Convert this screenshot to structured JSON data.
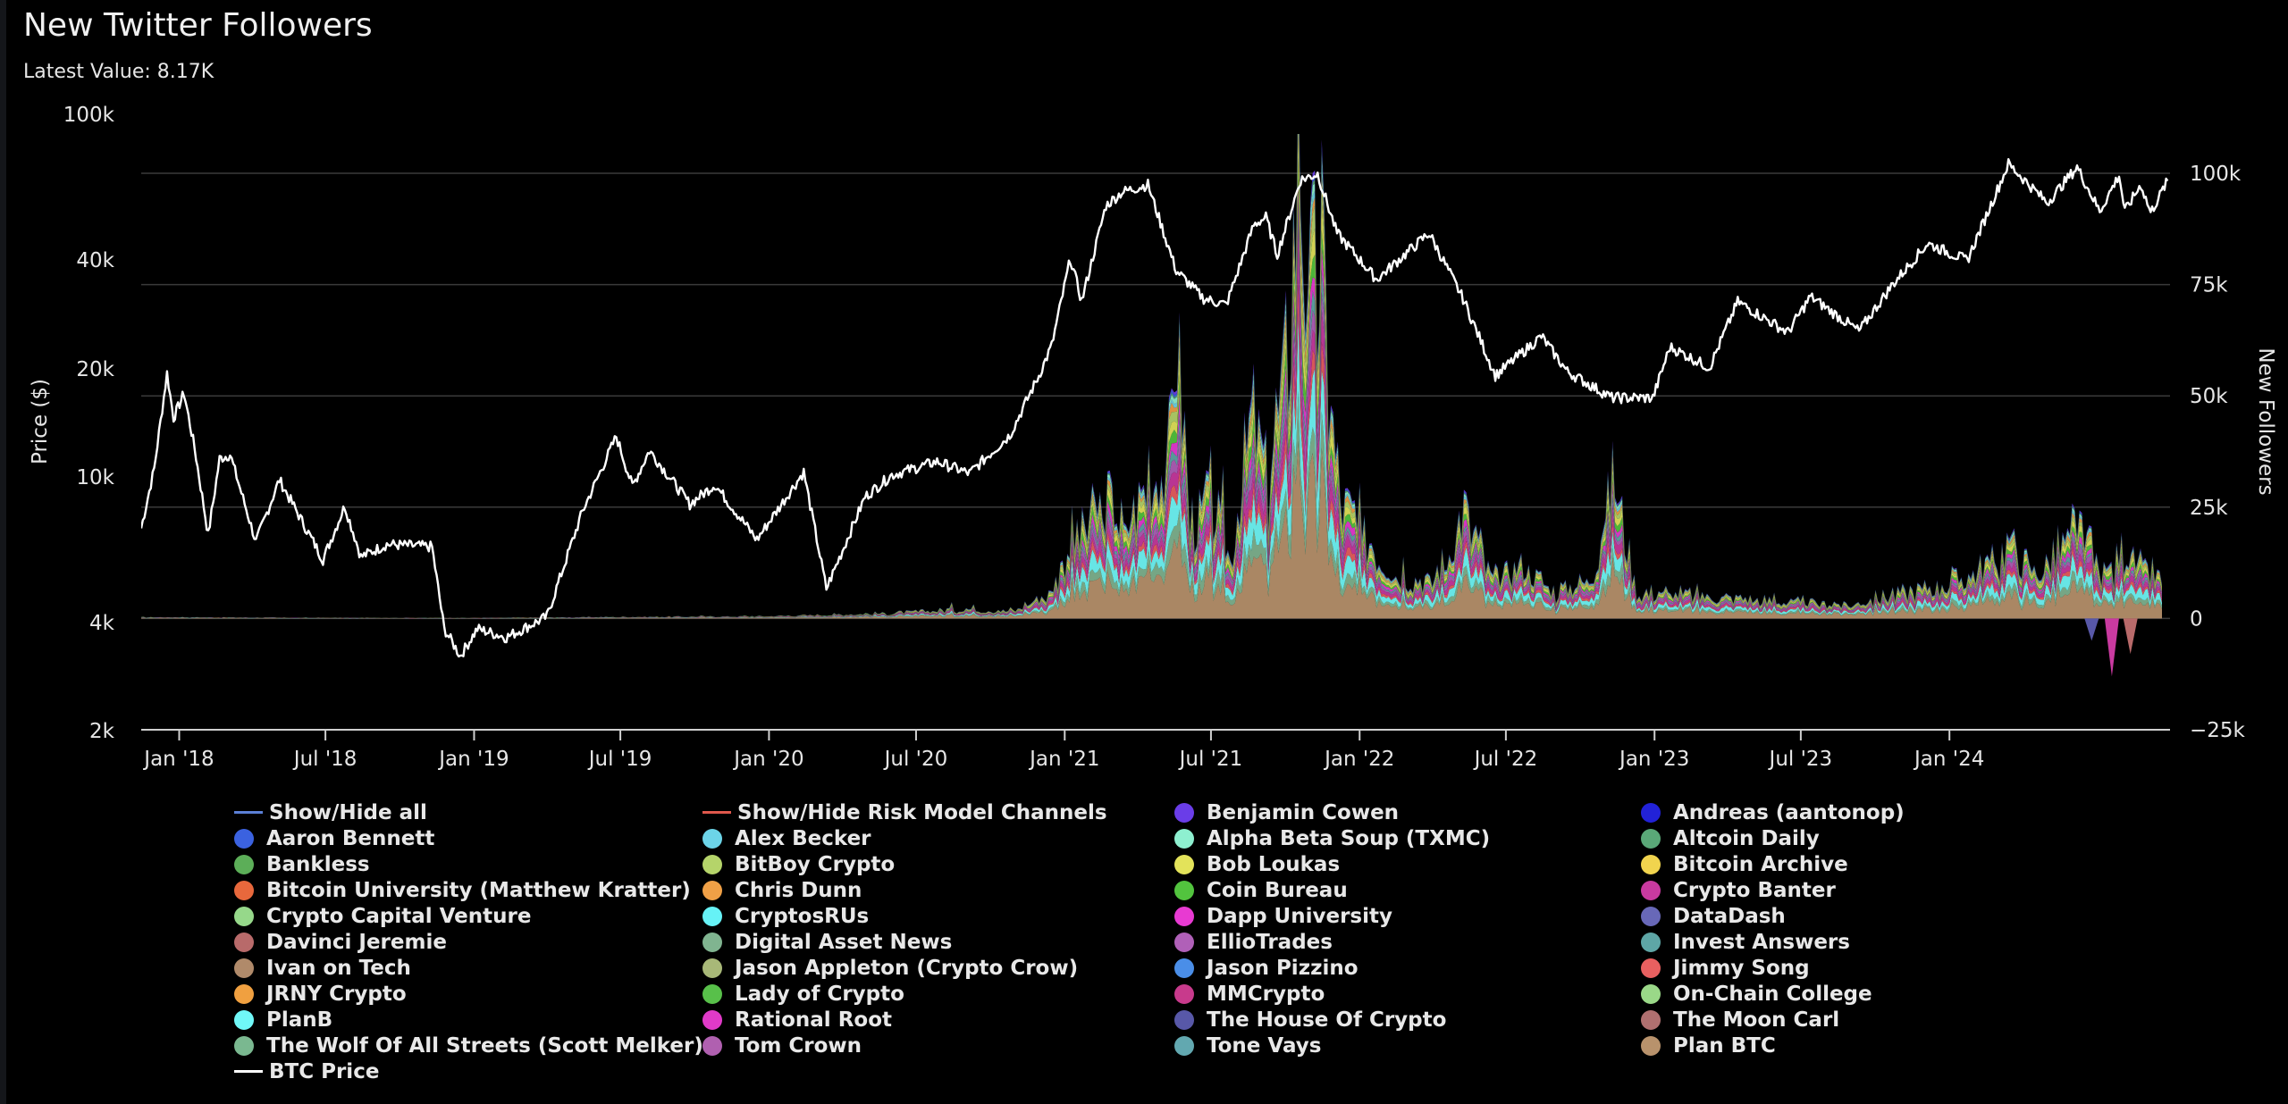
{
  "title": "New Twitter Followers",
  "latest_value": "Latest Value: 8.17K",
  "colors": {
    "background": "#000000",
    "grid": "#3a3a3a",
    "btc_line": "#ffffff",
    "text": "#e6e6e6"
  },
  "chart_data": {
    "type": "area",
    "stacked": true,
    "title": "New Twitter Followers",
    "x_tick_labels": [
      "Jan '18",
      "Jul '18",
      "Jan '19",
      "Jul '19",
      "Jan '20",
      "Jul '20",
      "Jan '21",
      "Jul '21",
      "Jan '22",
      "Jul '22",
      "Jan '23",
      "Jul '23",
      "Jan '24"
    ],
    "x_range": [
      "2017-11-15",
      "2024-09-30"
    ],
    "left_axis": {
      "label": "Price ($)",
      "scale": "log",
      "range": [
        2000,
        100000
      ],
      "tick_labels": [
        "100k",
        "40k",
        "20k",
        "10k",
        "4k",
        "2k"
      ],
      "tick_values": [
        100000,
        40000,
        20000,
        10000,
        4000,
        2000
      ]
    },
    "right_axis": {
      "label": "New Followers",
      "scale": "linear",
      "range": [
        -25000,
        100000
      ],
      "tick_labels": [
        "100k",
        "75k",
        "50k",
        "25k",
        "0",
        "−25k"
      ],
      "tick_values": [
        100000,
        75000,
        50000,
        25000,
        0,
        -25000
      ]
    },
    "grid": true,
    "legend_position": "bottom",
    "btc_price": {
      "name": "BTC Price",
      "points": [
        [
          "2017-11-15",
          7200
        ],
        [
          "2017-12-01",
          10500
        ],
        [
          "2017-12-17",
          19300
        ],
        [
          "2017-12-25",
          14500
        ],
        [
          "2018-01-07",
          17000
        ],
        [
          "2018-01-20",
          12000
        ],
        [
          "2018-02-06",
          6900
        ],
        [
          "2018-02-20",
          11200
        ],
        [
          "2018-03-05",
          11500
        ],
        [
          "2018-04-06",
          6600
        ],
        [
          "2018-05-05",
          9800
        ],
        [
          "2018-06-28",
          5900
        ],
        [
          "2018-07-25",
          8300
        ],
        [
          "2018-08-14",
          6000
        ],
        [
          "2018-09-15",
          6500
        ],
        [
          "2018-11-10",
          6400
        ],
        [
          "2018-11-25",
          3800
        ],
        [
          "2018-12-15",
          3200
        ],
        [
          "2019-01-05",
          3800
        ],
        [
          "2019-02-10",
          3600
        ],
        [
          "2019-04-01",
          4100
        ],
        [
          "2019-05-15",
          8000
        ],
        [
          "2019-06-26",
          12900
        ],
        [
          "2019-07-16",
          9400
        ],
        [
          "2019-08-06",
          11800
        ],
        [
          "2019-09-25",
          8400
        ],
        [
          "2019-10-26",
          9500
        ],
        [
          "2019-12-17",
          6700
        ],
        [
          "2020-02-13",
          10300
        ],
        [
          "2020-03-12",
          4900
        ],
        [
          "2020-04-29",
          8800
        ],
        [
          "2020-06-01",
          10100
        ],
        [
          "2020-07-27",
          11000
        ],
        [
          "2020-09-05",
          10200
        ],
        [
          "2020-10-25",
          13000
        ],
        [
          "2020-11-30",
          19000
        ],
        [
          "2020-12-16",
          23000
        ],
        [
          "2021-01-08",
          40000
        ],
        [
          "2021-01-22",
          30500
        ],
        [
          "2021-02-21",
          56000
        ],
        [
          "2021-03-13",
          61000
        ],
        [
          "2021-04-14",
          64000
        ],
        [
          "2021-05-19",
          37000
        ],
        [
          "2021-06-22",
          31000
        ],
        [
          "2021-07-20",
          29800
        ],
        [
          "2021-08-23",
          49500
        ],
        [
          "2021-09-07",
          52000
        ],
        [
          "2021-09-21",
          41000
        ],
        [
          "2021-10-20",
          66000
        ],
        [
          "2021-11-10",
          68500
        ],
        [
          "2021-12-04",
          47000
        ],
        [
          "2022-01-22",
          35000
        ],
        [
          "2022-03-28",
          47000
        ],
        [
          "2022-05-09",
          31000
        ],
        [
          "2022-06-18",
          19000
        ],
        [
          "2022-08-14",
          24400
        ],
        [
          "2022-09-15",
          19500
        ],
        [
          "2022-11-09",
          16500
        ],
        [
          "2022-12-30",
          16500
        ],
        [
          "2023-01-20",
          22800
        ],
        [
          "2023-03-10",
          20000
        ],
        [
          "2023-04-14",
          30400
        ],
        [
          "2023-06-15",
          25000
        ],
        [
          "2023-07-13",
          31400
        ],
        [
          "2023-09-11",
          25200
        ],
        [
          "2023-10-23",
          34000
        ],
        [
          "2023-12-05",
          44000
        ],
        [
          "2024-01-23",
          39500
        ],
        [
          "2024-03-14",
          73000
        ],
        [
          "2024-05-01",
          57000
        ],
        [
          "2024-06-07",
          71500
        ],
        [
          "2024-07-05",
          54000
        ],
        [
          "2024-07-29",
          68000
        ],
        [
          "2024-08-05",
          54000
        ],
        [
          "2024-08-25",
          64000
        ],
        [
          "2024-09-06",
          53500
        ],
        [
          "2024-09-27",
          65500
        ]
      ]
    },
    "followers_total": {
      "name": "New Followers (stacked total)",
      "points": [
        [
          "2017-11-15",
          300
        ],
        [
          "2018-06-01",
          150
        ],
        [
          "2019-01-01",
          100
        ],
        [
          "2019-06-01",
          300
        ],
        [
          "2020-01-01",
          500
        ],
        [
          "2020-06-01",
          1200
        ],
        [
          "2020-09-01",
          2200
        ],
        [
          "2020-11-01",
          1800
        ],
        [
          "2020-12-15",
          6000
        ],
        [
          "2021-01-10",
          18000
        ],
        [
          "2021-02-01",
          22000
        ],
        [
          "2021-02-20",
          28000
        ],
        [
          "2021-03-15",
          21000
        ],
        [
          "2021-04-15",
          30000
        ],
        [
          "2021-05-10",
          40000
        ],
        [
          "2021-05-20",
          69000
        ],
        [
          "2021-06-05",
          22000
        ],
        [
          "2021-07-01",
          28000
        ],
        [
          "2021-07-25",
          14000
        ],
        [
          "2021-08-20",
          47000
        ],
        [
          "2021-09-10",
          30000
        ],
        [
          "2021-10-05",
          60000
        ],
        [
          "2021-10-20",
          107000
        ],
        [
          "2021-11-01",
          70000
        ],
        [
          "2021-11-15",
          78000
        ],
        [
          "2021-12-05",
          30000
        ],
        [
          "2022-01-10",
          18000
        ],
        [
          "2022-02-15",
          10000
        ],
        [
          "2022-04-01",
          8000
        ],
        [
          "2022-05-10",
          24000
        ],
        [
          "2022-06-15",
          9000
        ],
        [
          "2022-07-20",
          12000
        ],
        [
          "2022-09-01",
          6000
        ],
        [
          "2022-10-15",
          9000
        ],
        [
          "2022-11-10",
          32000
        ],
        [
          "2022-12-10",
          6000
        ],
        [
          "2023-03-01",
          5000
        ],
        [
          "2023-06-01",
          4000
        ],
        [
          "2023-09-01",
          3000
        ],
        [
          "2023-11-01",
          6000
        ],
        [
          "2024-01-01",
          8000
        ],
        [
          "2024-02-20",
          12000
        ],
        [
          "2024-03-15",
          18000
        ],
        [
          "2024-04-15",
          10000
        ],
        [
          "2024-05-20",
          16000
        ],
        [
          "2024-06-10",
          22000
        ],
        [
          "2024-07-10",
          9000
        ],
        [
          "2024-08-01",
          16000
        ],
        [
          "2024-09-20",
          8170
        ]
      ]
    }
  },
  "legend": [
    {
      "label": "Show/Hide all",
      "color": "#5b7fd6",
      "marker": "line"
    },
    {
      "label": "Show/Hide Risk Model Channels",
      "color": "#e0584c",
      "marker": "line"
    },
    {
      "label": "Benjamin Cowen",
      "color": "#6a3de8",
      "marker": "dot"
    },
    {
      "label": "Andreas (aantonop)",
      "color": "#2222d8",
      "marker": "dot"
    },
    {
      "label": "Aaron Bennett",
      "color": "#3b62e0",
      "marker": "dot"
    },
    {
      "label": "Alex Becker",
      "color": "#6cd4e8",
      "marker": "dot"
    },
    {
      "label": "Alpha Beta Soup (TXMC)",
      "color": "#8ef0d0",
      "marker": "dot"
    },
    {
      "label": "Altcoin Daily",
      "color": "#5aa878",
      "marker": "dot"
    },
    {
      "label": "Bankless",
      "color": "#5cae58",
      "marker": "dot"
    },
    {
      "label": "BitBoy Crypto",
      "color": "#b5d46a",
      "marker": "dot"
    },
    {
      "label": "Bob Loukas",
      "color": "#e3e35a",
      "marker": "dot"
    },
    {
      "label": "Bitcoin Archive",
      "color": "#f1d44e",
      "marker": "dot"
    },
    {
      "label": "Bitcoin University (Matthew Kratter)",
      "color": "#e8683c",
      "marker": "dot"
    },
    {
      "label": "Chris Dunn",
      "color": "#f0a046",
      "marker": "dot"
    },
    {
      "label": "Coin Bureau",
      "color": "#52c43e",
      "marker": "dot"
    },
    {
      "label": "Crypto Banter",
      "color": "#c93aa0",
      "marker": "dot"
    },
    {
      "label": "Crypto Capital Venture",
      "color": "#96d88a",
      "marker": "dot"
    },
    {
      "label": "CryptosRUs",
      "color": "#66f2f6",
      "marker": "dot"
    },
    {
      "label": "Dapp University",
      "color": "#e83ad2",
      "marker": "dot"
    },
    {
      "label": "DataDash",
      "color": "#6868b8",
      "marker": "dot"
    },
    {
      "label": "Davinci Jeremie",
      "color": "#b86a6a",
      "marker": "dot"
    },
    {
      "label": "Digital Asset News",
      "color": "#80b490",
      "marker": "dot"
    },
    {
      "label": "EllioTrades",
      "color": "#b060b8",
      "marker": "dot"
    },
    {
      "label": "Invest Answers",
      "color": "#5ea6a6",
      "marker": "dot"
    },
    {
      "label": "Ivan on Tech",
      "color": "#b08a6a",
      "marker": "dot"
    },
    {
      "label": "Jason Appleton (Crypto Crow)",
      "color": "#a8b878",
      "marker": "dot"
    },
    {
      "label": "Jason Pizzino",
      "color": "#4a8ee8",
      "marker": "dot"
    },
    {
      "label": "Jimmy Song",
      "color": "#e86060",
      "marker": "dot"
    },
    {
      "label": "JRNY Crypto",
      "color": "#f0a040",
      "marker": "dot"
    },
    {
      "label": "Lady of Crypto",
      "color": "#58c04a",
      "marker": "dot"
    },
    {
      "label": "MMCrypto",
      "color": "#c83a8c",
      "marker": "dot"
    },
    {
      "label": "On-Chain College",
      "color": "#9ad888",
      "marker": "dot"
    },
    {
      "label": "PlanB",
      "color": "#70f8f8",
      "marker": "dot"
    },
    {
      "label": "Rational Root",
      "color": "#e03ac8",
      "marker": "dot"
    },
    {
      "label": "The House Of Crypto",
      "color": "#5858a8",
      "marker": "dot"
    },
    {
      "label": "The Moon Carl",
      "color": "#b07070",
      "marker": "dot"
    },
    {
      "label": "The Wolf Of All Streets (Scott Melker)",
      "color": "#7ab890",
      "marker": "dot"
    },
    {
      "label": "Tom Crown",
      "color": "#b060b0",
      "marker": "dot"
    },
    {
      "label": "Tone Vays",
      "color": "#62a8b0",
      "marker": "dot"
    },
    {
      "label": "Plan BTC",
      "color": "#b8926c",
      "marker": "dot"
    },
    {
      "label": "BTC Price",
      "color": "#ffffff",
      "marker": "line"
    }
  ]
}
